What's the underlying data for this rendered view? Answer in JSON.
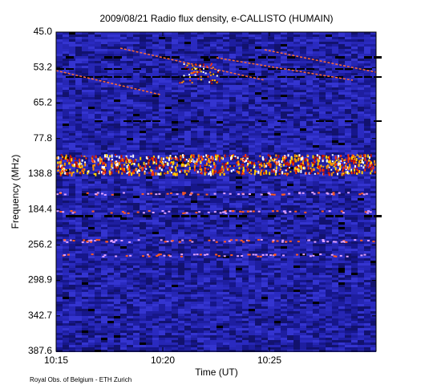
{
  "chart_data": {
    "type": "heatmap",
    "title": "2009/08/21  Radio flux density, e-CALLISTO (HUMAIN)",
    "xlabel": "Time (UT)",
    "ylabel": "Frequency (MHz)",
    "xticks": [
      "10:15",
      "10:20",
      "10:25"
    ],
    "yticks": [
      "45.0",
      "53.2",
      "65.2",
      "77.8",
      "138.8",
      "184.4",
      "256.2",
      "298.9",
      "342.7",
      "387.6"
    ],
    "credit": "Royal Obs. of Belgium - ETH Zurich"
  }
}
